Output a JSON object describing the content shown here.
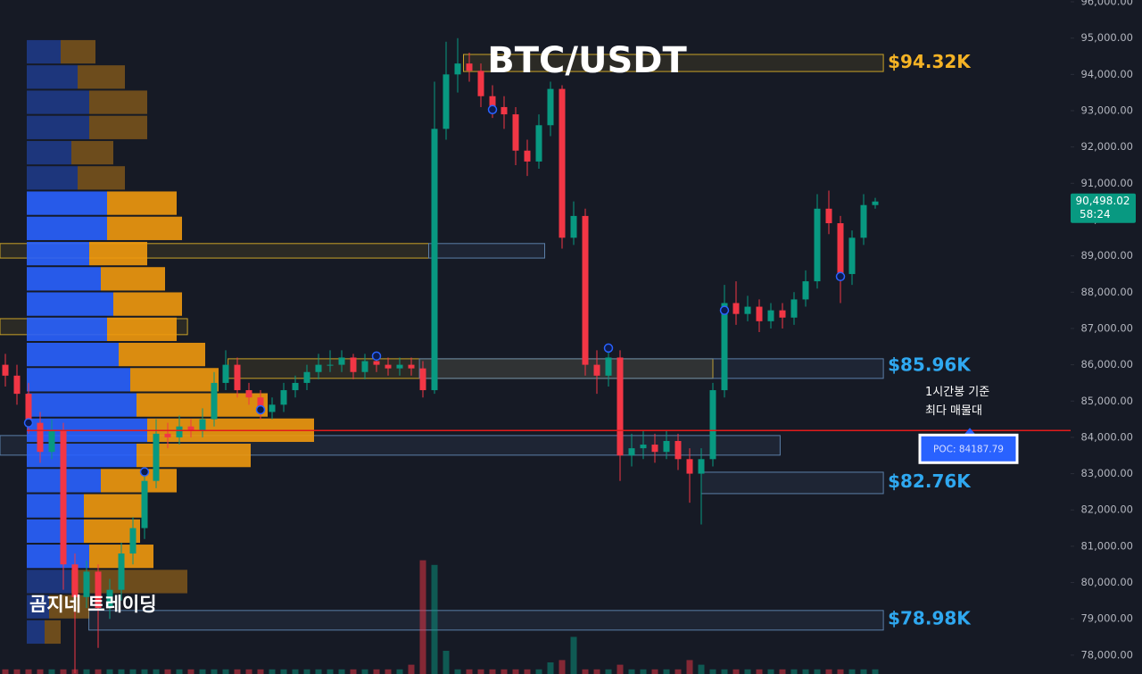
{
  "chart_data": {
    "type": "candlestick",
    "title": "BTC/USDT",
    "brand": "곰지네 트레이딩",
    "ylim": [
      77480,
      96050
    ],
    "yticks": [
      {
        "value": 96000,
        "label": "96,000.00"
      },
      {
        "value": 95000,
        "label": "95,000.00"
      },
      {
        "value": 94000,
        "label": "94,000.00"
      },
      {
        "value": 93000,
        "label": "93,000.00"
      },
      {
        "value": 92000,
        "label": "92,000.00"
      },
      {
        "value": 91000,
        "label": "91,000.00"
      },
      {
        "value": 90000,
        "label": "90,000.00"
      },
      {
        "value": 89000,
        "label": "89,000.00"
      },
      {
        "value": 88000,
        "label": "88,000.00"
      },
      {
        "value": 87000,
        "label": "87,000.00"
      },
      {
        "value": 86000,
        "label": "86,000.00"
      },
      {
        "value": 85000,
        "label": "85,000.00"
      },
      {
        "value": 84000,
        "label": "84,000.00"
      },
      {
        "value": 83000,
        "label": "83,000.00"
      },
      {
        "value": 82000,
        "label": "82,000.00"
      },
      {
        "value": 81000,
        "label": "81,000.00"
      },
      {
        "value": 80000,
        "label": "80,000.00"
      },
      {
        "value": 79000,
        "label": "79,000.00"
      },
      {
        "value": 78000,
        "label": "78,000.00"
      }
    ],
    "up_color": "#089981",
    "down_color": "#f23645",
    "open": [
      86000,
      85700,
      85200,
      84400,
      83600,
      84200,
      80500,
      79600,
      80300,
      79300,
      79800,
      80800,
      81500,
      82800,
      84100,
      84000,
      84300,
      84200,
      84500,
      85500,
      86000,
      85300,
      85100,
      84700,
      84900,
      85300,
      85500,
      85800,
      86000,
      86000,
      86200,
      85800,
      86100,
      86000,
      85900,
      86000,
      85900,
      85300,
      92500,
      94000,
      94300,
      94100,
      93400,
      93100,
      92900,
      91900,
      91600,
      92600,
      93600,
      89500,
      90100,
      86000,
      85700,
      86200,
      83500,
      83700,
      83800,
      83600,
      83900,
      83400,
      83000,
      83400,
      85300,
      87700,
      87400,
      87600,
      87200,
      87500,
      87300,
      87800,
      88300,
      90300,
      89900,
      88500,
      89500,
      90400
    ],
    "high": [
      86300,
      86000,
      85500,
      84700,
      84500,
      84400,
      80800,
      80600,
      80500,
      80100,
      81100,
      81800,
      83100,
      84500,
      84400,
      84600,
      84500,
      84800,
      85800,
      86400,
      86200,
      85500,
      85300,
      85100,
      85500,
      85700,
      86000,
      86300,
      86400,
      86400,
      86300,
      86300,
      86300,
      86200,
      86200,
      86200,
      86100,
      93800,
      94900,
      95000,
      94600,
      94300,
      93700,
      93400,
      93100,
      92200,
      92900,
      93800,
      93700,
      90500,
      90300,
      86400,
      86500,
      86400,
      84100,
      84200,
      84100,
      84200,
      84100,
      83700,
      83700,
      85500,
      88200,
      88300,
      87900,
      87800,
      87700,
      87700,
      88000,
      88600,
      90700,
      90800,
      90100,
      89700,
      90700,
      90600
    ],
    "low": [
      85400,
      84900,
      84100,
      83300,
      83400,
      79800,
      77500,
      79300,
      78200,
      79000,
      79500,
      80500,
      81200,
      82600,
      83700,
      83800,
      84000,
      84000,
      84300,
      85300,
      85100,
      84900,
      84500,
      84500,
      84700,
      85100,
      85300,
      85600,
      85800,
      85800,
      85600,
      85600,
      85800,
      85700,
      85700,
      85700,
      85100,
      85200,
      92200,
      93500,
      93800,
      93100,
      92800,
      92500,
      91500,
      91200,
      91400,
      92300,
      89200,
      89300,
      85700,
      85200,
      85400,
      82800,
      83200,
      83400,
      83300,
      83400,
      83100,
      82200,
      81600,
      83200,
      85100,
      87100,
      87200,
      86900,
      87000,
      87000,
      87100,
      87600,
      88100,
      89600,
      87700,
      88200,
      89300,
      90300
    ],
    "close": [
      85700,
      85200,
      84400,
      83600,
      84200,
      80500,
      79600,
      80300,
      79300,
      79800,
      80800,
      81500,
      82800,
      84100,
      84000,
      84300,
      84200,
      84500,
      85500,
      86000,
      85300,
      85100,
      84700,
      84900,
      85300,
      85500,
      85800,
      86000,
      86000,
      86200,
      85800,
      86100,
      86000,
      85900,
      86000,
      85900,
      85300,
      92500,
      94000,
      94300,
      94100,
      93400,
      93100,
      92900,
      91900,
      91600,
      92600,
      93600,
      89500,
      90100,
      86000,
      85700,
      86200,
      83500,
      83700,
      83800,
      83600,
      83900,
      83400,
      83000,
      83400,
      85300,
      87700,
      87400,
      87600,
      87200,
      87500,
      87300,
      87800,
      88300,
      90300,
      89900,
      88500,
      89500,
      90400,
      90498.02
    ],
    "volume": [
      4,
      4,
      4,
      4,
      4,
      4,
      4,
      4,
      4,
      4,
      4,
      4,
      4,
      4,
      4,
      4,
      4,
      4,
      4,
      4,
      4,
      4,
      4,
      4,
      4,
      4,
      4,
      4,
      4,
      4,
      4,
      4,
      4,
      4,
      4,
      8,
      98,
      94,
      20,
      4,
      4,
      4,
      4,
      4,
      4,
      4,
      4,
      10,
      12,
      32,
      4,
      4,
      4,
      8,
      4,
      4,
      4,
      4,
      4,
      12,
      8,
      4,
      4,
      4,
      4,
      4,
      4,
      4,
      4,
      4,
      4,
      4,
      4,
      4,
      4,
      4
    ],
    "vlim": [
      0,
      100
    ],
    "profile": {
      "edges": [
        94970,
        94275,
        93580,
        92885,
        92190,
        91495,
        90800,
        90105,
        89410,
        88715,
        88020,
        87325,
        86630,
        85935,
        85240,
        84545,
        83850,
        83155,
        82460,
        81765,
        81070,
        80375,
        79680,
        78985,
        78290
      ],
      "buy": [
        38,
        57,
        70,
        70,
        50,
        57,
        90,
        90,
        70,
        83,
        97,
        90,
        103,
        116,
        123,
        135,
        123,
        83,
        64,
        64,
        70,
        50,
        25,
        20
      ],
      "sell": [
        39,
        53,
        65,
        65,
        47,
        53,
        78,
        84,
        65,
        72,
        77,
        78,
        97,
        99,
        147,
        187,
        128,
        85,
        65,
        63,
        72,
        130,
        45,
        18
      ],
      "value_area": [
        6,
        20
      ],
      "buy_color": "#2962ff",
      "sell_color": "#f0990e"
    },
    "zones": [
      {
        "low": 94080,
        "high": 94550,
        "from": 39.5,
        "to": 75.7,
        "color": "#c9a227",
        "label": {
          "value": 94320,
          "label": "$94.32K"
        }
      },
      {
        "low": 88940,
        "high": 89340,
        "from": -0.5,
        "to": 36.5,
        "color": "#c9a227"
      },
      {
        "low": 88940,
        "high": 89340,
        "from": 36.5,
        "to": 46.5,
        "color": "#5b7fa8"
      },
      {
        "low": 86830,
        "high": 87270,
        "from": -0.5,
        "to": 15.7,
        "color": "#c9a227"
      },
      {
        "low": 85625,
        "high": 86165,
        "from": 19.2,
        "to": 61,
        "color": "#c9a227"
      },
      {
        "low": 85625,
        "high": 86165,
        "from": 35.7,
        "to": 75.7,
        "color": "#5b7fa8",
        "label": {
          "value": 85960,
          "label": "$85.96K"
        }
      },
      {
        "low": 83510,
        "high": 84050,
        "from": -0.5,
        "to": 66.8,
        "color": "#5b7fa8"
      },
      {
        "low": 82450,
        "high": 83040,
        "from": 60,
        "to": 75.7,
        "color": "#5b7fa8",
        "label": {
          "value": 82760,
          "label": "$82.76K"
        }
      },
      {
        "low": 78690,
        "high": 79230,
        "from": 7.2,
        "to": 75.7,
        "color": "#5b7fa8",
        "label": {
          "value": 78980,
          "label": "$78.98K"
        }
      }
    ],
    "pivots": [
      {
        "index": 2,
        "value": 84400
      },
      {
        "index": 12,
        "value": 83050
      },
      {
        "index": 22,
        "value": 84760
      },
      {
        "index": 32,
        "value": 86240
      },
      {
        "index": 42,
        "value": 93030
      },
      {
        "index": 52,
        "value": 86460
      },
      {
        "index": 62,
        "value": 87500
      },
      {
        "index": 72,
        "value": 88430
      }
    ],
    "poc": {
      "value": 84187.79,
      "label": "POC: 84187.79"
    },
    "poc_note": [
      "1시간봉 기준",
      "최다 매물대"
    ],
    "poc_color": "#e31b1b",
    "last_price": {
      "value": 90498.02,
      "label": "90,498.02"
    },
    "countdown": "58:24"
  }
}
